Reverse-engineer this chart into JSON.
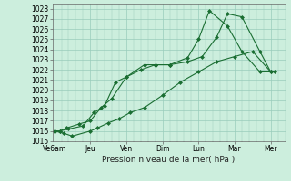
{
  "title": "",
  "xlabel": "Pression niveau de la mer( hPa )",
  "background_color": "#cceedd",
  "grid_color": "#99ccbb",
  "line_color": "#1a6e32",
  "ylim": [
    1015,
    1028.5
  ],
  "yticks": [
    1015,
    1016,
    1017,
    1018,
    1019,
    1020,
    1021,
    1022,
    1023,
    1024,
    1025,
    1026,
    1027,
    1028
  ],
  "xtick_labels": [
    "Ve6am",
    "Jeu",
    "Ven",
    "Dim",
    "Lun",
    "Mar",
    "Mer"
  ],
  "xtick_positions": [
    0,
    1,
    2,
    3,
    4,
    5,
    6
  ],
  "xlim": [
    -0.05,
    6.4
  ],
  "series1_x": [
    0,
    0.25,
    0.5,
    1.0,
    1.2,
    1.5,
    1.8,
    2.1,
    2.5,
    3.0,
    3.5,
    4.0,
    4.5,
    5.0,
    5.5,
    6.0
  ],
  "series1_y": [
    1016.0,
    1015.8,
    1015.5,
    1016.0,
    1016.3,
    1016.8,
    1017.2,
    1017.8,
    1018.3,
    1019.5,
    1020.8,
    1021.8,
    1022.8,
    1023.3,
    1023.8,
    1021.8
  ],
  "series2_x": [
    0,
    0.15,
    0.4,
    0.8,
    1.1,
    1.4,
    1.7,
    2.0,
    2.4,
    2.8,
    3.2,
    3.7,
    4.1,
    4.5,
    4.8,
    5.2,
    5.7,
    6.0
  ],
  "series2_y": [
    1016.0,
    1016.0,
    1016.2,
    1016.5,
    1017.8,
    1018.5,
    1020.8,
    1021.3,
    1022.0,
    1022.5,
    1022.5,
    1022.8,
    1023.3,
    1025.2,
    1027.5,
    1027.2,
    1023.8,
    1021.8
  ],
  "series3_x": [
    0,
    0.15,
    0.35,
    0.7,
    1.0,
    1.3,
    1.6,
    2.0,
    2.5,
    2.8,
    3.2,
    3.7,
    4.0,
    4.3,
    4.8,
    5.2,
    5.7,
    6.1
  ],
  "series3_y": [
    1016.0,
    1016.0,
    1016.3,
    1016.7,
    1017.0,
    1018.3,
    1019.2,
    1021.3,
    1022.5,
    1022.5,
    1022.5,
    1023.2,
    1025.0,
    1027.8,
    1026.3,
    1023.8,
    1021.8,
    1021.8
  ]
}
